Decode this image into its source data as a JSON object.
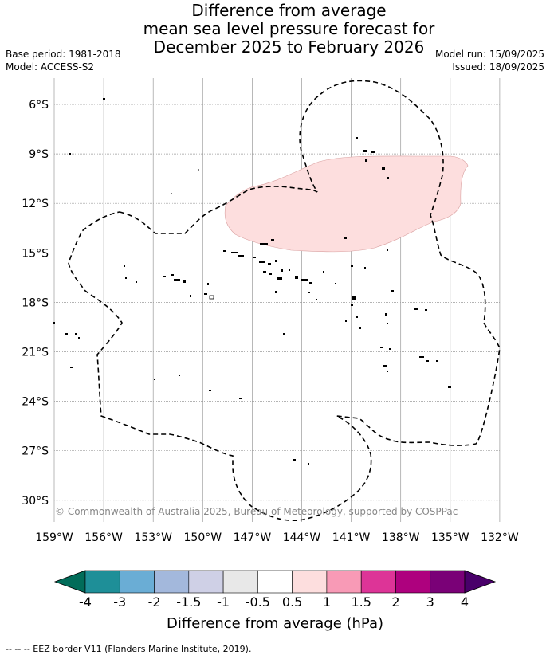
{
  "title": {
    "line1": "Difference from average",
    "line2": "mean sea level pressure forecast for",
    "line3": "December 2025 to February 2026"
  },
  "meta": {
    "base_period": "Base period: 1981-2018",
    "model": "Model: ACCESS-S2",
    "model_run": "Model run: 15/09/2025",
    "issued": "Issued: 18/09/2025"
  },
  "map": {
    "lon_ticks": [
      "159°W",
      "156°W",
      "153°W",
      "150°W",
      "147°W",
      "144°W",
      "141°W",
      "138°W",
      "135°W",
      "132°W"
    ],
    "lat_ticks": [
      "6°S",
      "9°S",
      "12°S",
      "15°S",
      "18°S",
      "21°S",
      "24°S",
      "27°S",
      "30°S"
    ],
    "lon_range": [
      -159,
      -132
    ],
    "lat_range": [
      -31.3,
      -4.7
    ],
    "grid": true,
    "anomaly_region": {
      "category": "0.5 to 1",
      "color": "#fddede"
    },
    "copyright": "© Commonwealth of Australia 2025, Bureau of Meteorology, supported by COSPPac"
  },
  "colorbar": {
    "ticks": [
      "-4",
      "-3",
      "-2",
      "-1.5",
      "-1",
      "-0.5",
      "0.5",
      "1",
      "1.5",
      "2",
      "3",
      "4"
    ],
    "colors": [
      "#1e8f98",
      "#6aadd5",
      "#a3b8dc",
      "#cfd0e6",
      "#e8e8e8",
      "#ffffff",
      "#fddede",
      "#f89ab6",
      "#dd3497",
      "#ae017e",
      "#7a0177"
    ],
    "under_color": "#016c59",
    "over_color": "#49006a",
    "label": "Difference from average (hPa)"
  },
  "footnote": "--  --  -- EEZ border V11 (Flanders Marine Institute, 2019)."
}
